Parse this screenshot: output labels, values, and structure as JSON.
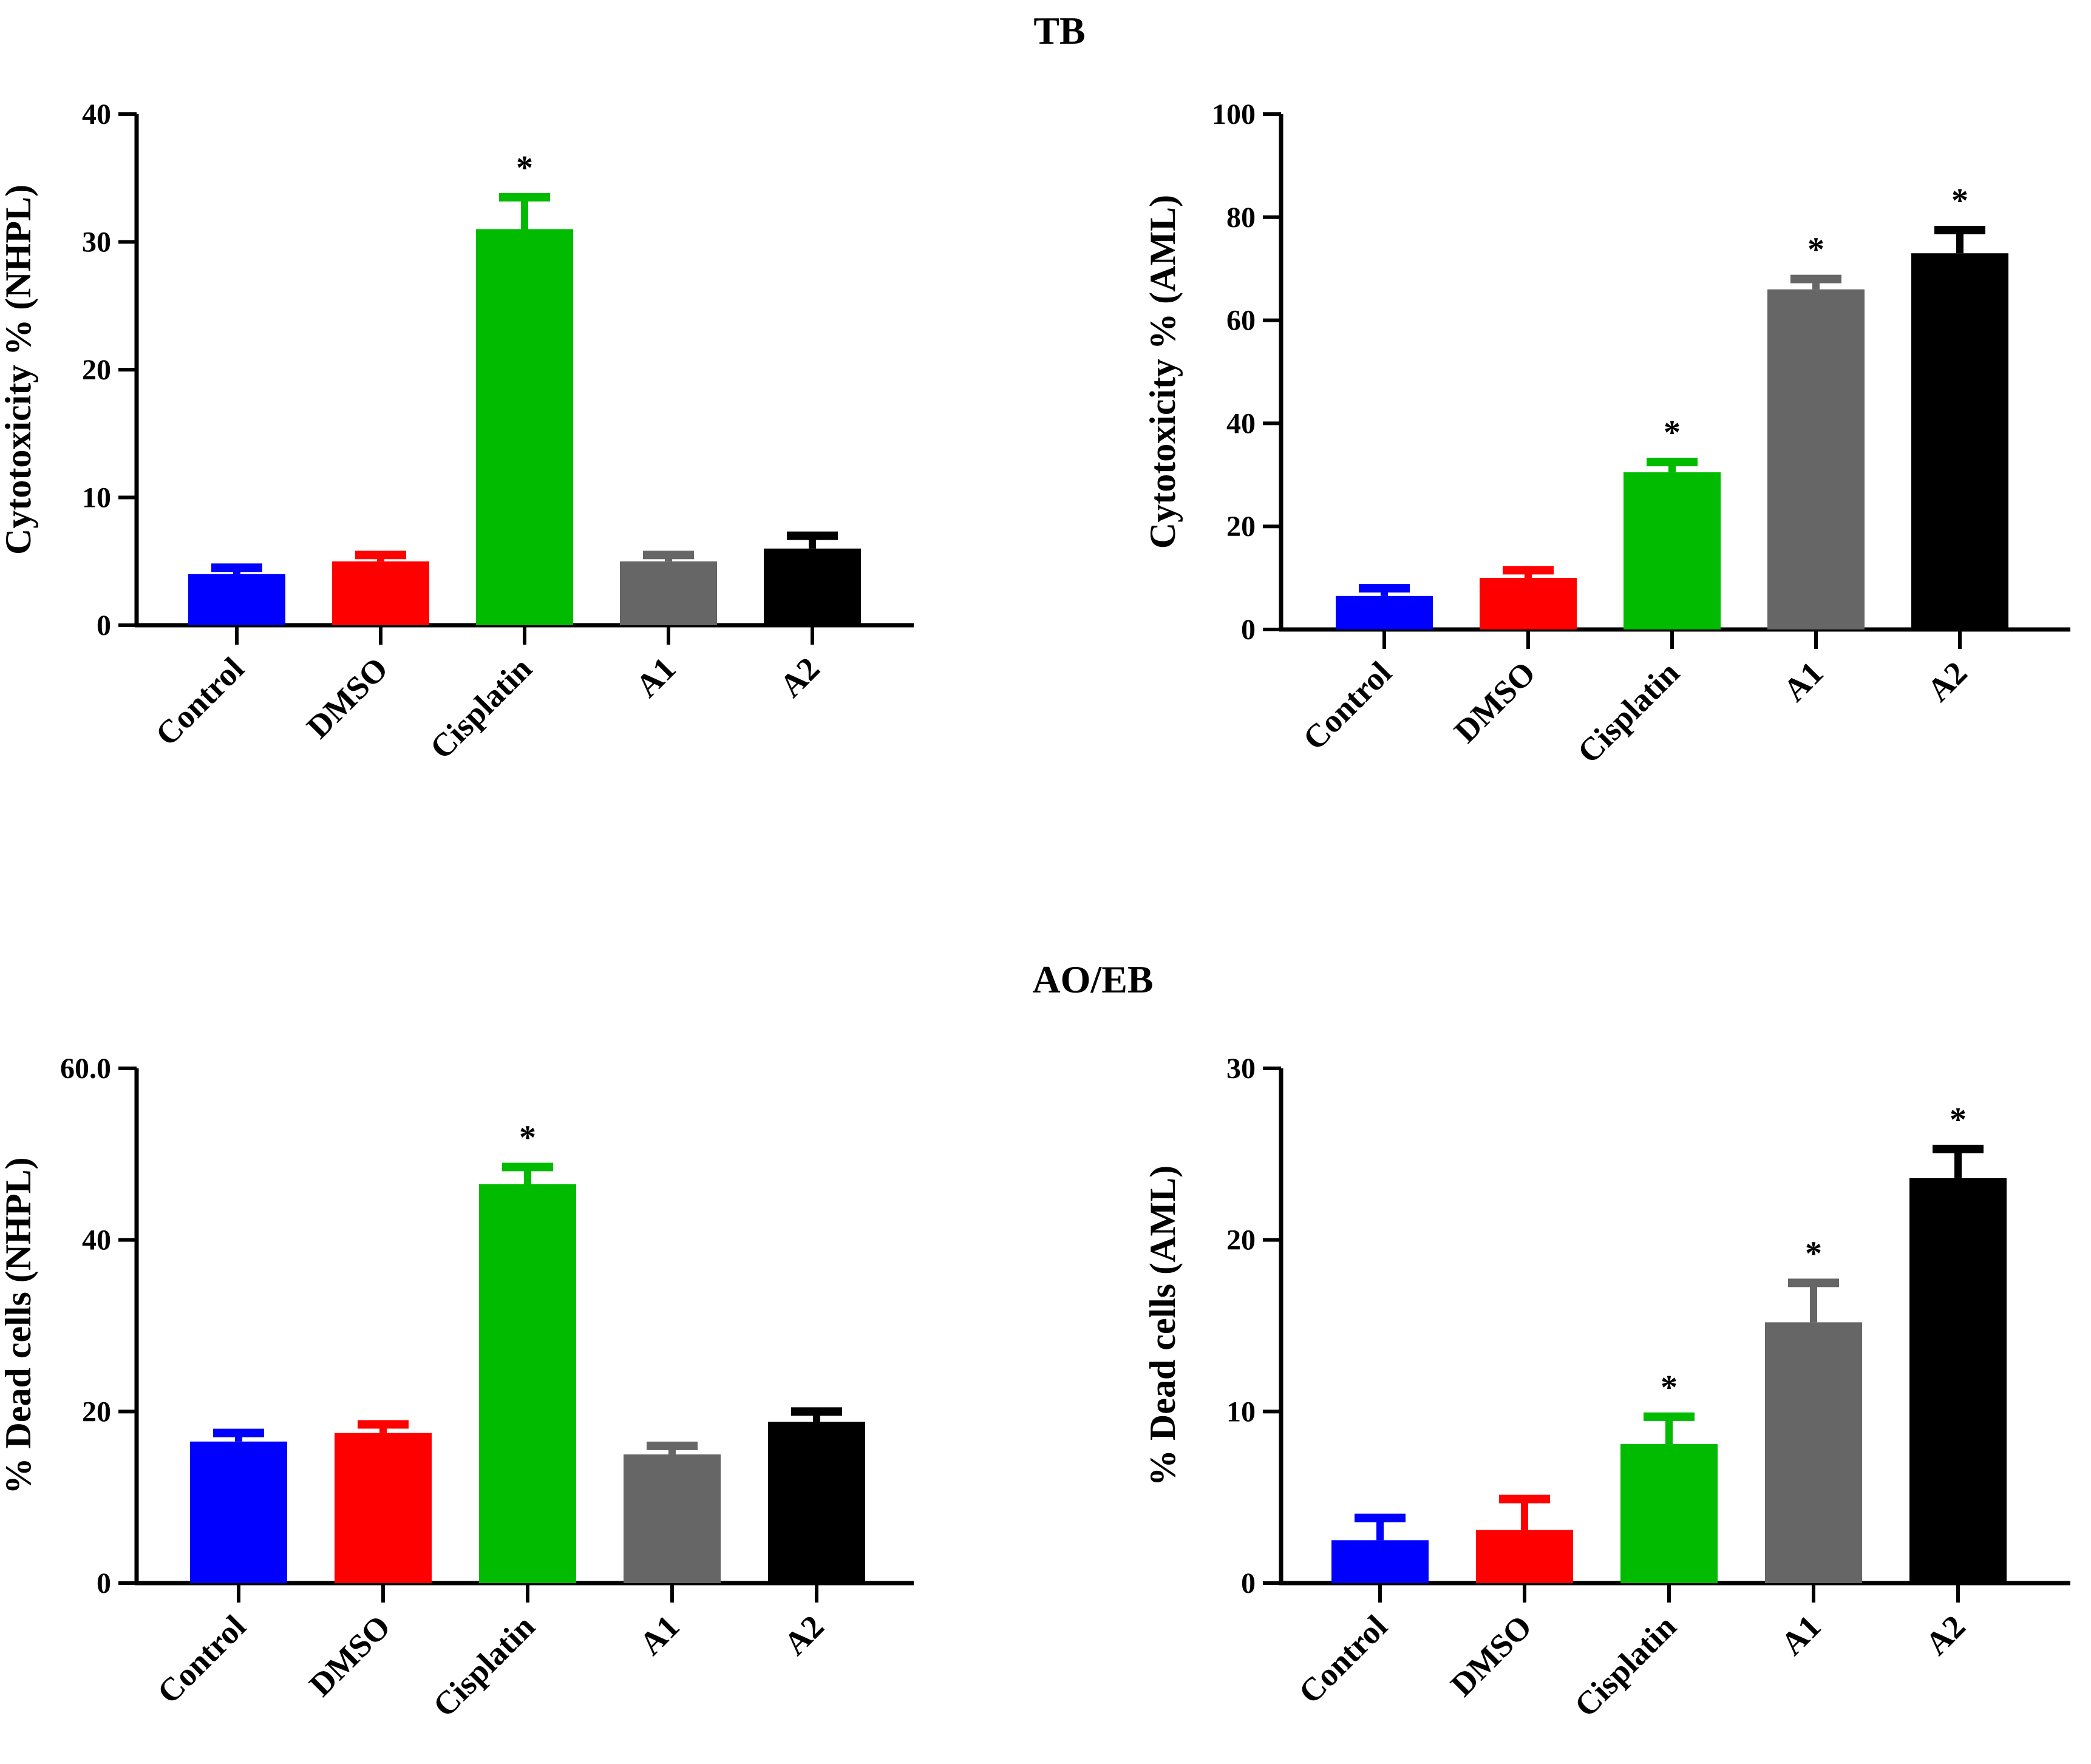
{
  "sections": [
    {
      "title": "TB"
    },
    {
      "title": "AO/EB"
    }
  ],
  "chart_data": [
    {
      "type": "bar",
      "title": "",
      "section": "TB",
      "categories": [
        "Control",
        "DMSO",
        "Cisplatin",
        "A1",
        "A2"
      ],
      "values": [
        4.0,
        5.0,
        31.0,
        5.0,
        6.0
      ],
      "errors": [
        0.5,
        0.5,
        2.5,
        0.5,
        1.0
      ],
      "significance": [
        "",
        "",
        "*",
        "",
        ""
      ],
      "colors": [
        "#0000ff",
        "#ff0000",
        "#00bb00",
        "#666666",
        "#000000"
      ],
      "xlabel": "",
      "ylabel": "Cytotoxicity % (NHPL)",
      "ylim": [
        0,
        40
      ],
      "yticks": [
        0,
        10,
        20,
        30,
        40
      ],
      "ytick_labels": [
        "0",
        "10",
        "20",
        "30",
        "40"
      ]
    },
    {
      "type": "bar",
      "title": "",
      "section": "TB",
      "categories": [
        "Control",
        "DMSO",
        "Cisplatin",
        "A1",
        "A2"
      ],
      "values": [
        6.5,
        10.0,
        30.5,
        66.0,
        73.0
      ],
      "errors": [
        1.5,
        1.5,
        2.0,
        2.0,
        4.5
      ],
      "significance": [
        "",
        "",
        "*",
        "*",
        "*"
      ],
      "colors": [
        "#0000ff",
        "#ff0000",
        "#00bb00",
        "#666666",
        "#000000"
      ],
      "xlabel": "",
      "ylabel": "Cytotoxicity % (AML)",
      "ylim": [
        0,
        100
      ],
      "yticks": [
        0,
        20,
        40,
        60,
        80,
        100
      ],
      "ytick_labels": [
        "0",
        "20",
        "40",
        "60",
        "80",
        "100"
      ]
    },
    {
      "type": "bar",
      "title": "",
      "section": "AO/EB",
      "categories": [
        "Control",
        "DMSO",
        "Cisplatin",
        "A1",
        "A2"
      ],
      "values": [
        16.5,
        17.5,
        46.5,
        15.0,
        18.8
      ],
      "errors": [
        1.0,
        1.0,
        2.0,
        1.0,
        1.2
      ],
      "significance": [
        "",
        "",
        "*",
        "",
        ""
      ],
      "colors": [
        "#0000ff",
        "#ff0000",
        "#00bb00",
        "#666666",
        "#000000"
      ],
      "xlabel": "",
      "ylabel": "% Dead cells (NHPL)",
      "ylim": [
        0,
        60
      ],
      "yticks": [
        0,
        20,
        40,
        60
      ],
      "ytick_labels": [
        "0",
        "20",
        "40",
        "60.0"
      ]
    },
    {
      "type": "bar",
      "title": "",
      "section": "AO/EB",
      "categories": [
        "Control",
        "DMSO",
        "Cisplatin",
        "A1",
        "A2"
      ],
      "values": [
        2.5,
        3.1,
        8.1,
        15.2,
        23.6
      ],
      "errors": [
        1.3,
        1.8,
        1.6,
        2.3,
        1.7
      ],
      "significance": [
        "",
        "",
        "*",
        "*",
        "*"
      ],
      "colors": [
        "#0000ff",
        "#ff0000",
        "#00bb00",
        "#666666",
        "#000000"
      ],
      "xlabel": "",
      "ylabel": "% Dead cells (AML)",
      "ylim": [
        0,
        30
      ],
      "yticks": [
        0,
        10,
        20,
        30
      ],
      "ytick_labels": [
        "0",
        "10",
        "20",
        "30"
      ]
    }
  ]
}
